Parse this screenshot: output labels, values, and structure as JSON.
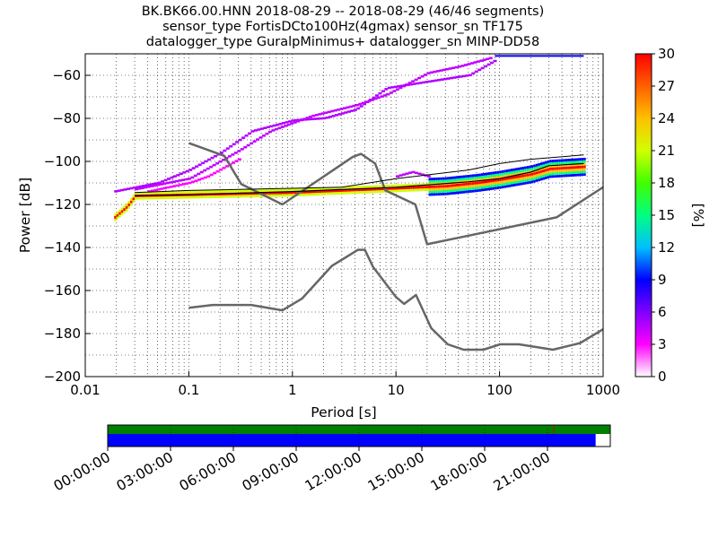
{
  "title": {
    "line1": "BK.BK66.00.HNN   2018-08-29 -- 2018-08-29  (46/46 segments)",
    "line2": "sensor_type FortisDCto100Hz(4gmax) sensor_sn TF175",
    "line3": "datalogger_type GuralpMinimus+ datalogger_sn MINP-DD58"
  },
  "chart_data": [
    {
      "type": "heatmap",
      "xlabel": "Period [s]",
      "ylabel": "Power [dB]",
      "x_scale": "log",
      "xlim": [
        0.01,
        1000
      ],
      "ylim": [
        -200,
        -50
      ],
      "x_ticks": [
        {
          "value": 0.01,
          "label": "0.01"
        },
        {
          "value": 0.1,
          "label": "0.1"
        },
        {
          "value": 1,
          "label": "1"
        },
        {
          "value": 10,
          "label": "10"
        },
        {
          "value": 100,
          "label": "100"
        },
        {
          "value": 1000,
          "label": "1000"
        }
      ],
      "y_ticks": [
        {
          "value": -60,
          "label": "−60"
        },
        {
          "value": -80,
          "label": "−80"
        },
        {
          "value": -100,
          "label": "−100"
        },
        {
          "value": -120,
          "label": "−120"
        },
        {
          "value": -140,
          "label": "−140"
        },
        {
          "value": -160,
          "label": "−160"
        },
        {
          "value": -180,
          "label": "−180"
        },
        {
          "value": -200,
          "label": "−200"
        }
      ],
      "grid": true,
      "colorbar": {
        "label": "[%]",
        "range": [
          0,
          30
        ],
        "ticks": [
          {
            "value": 0,
            "label": "0"
          },
          {
            "value": 3,
            "label": "3"
          },
          {
            "value": 6,
            "label": "6"
          },
          {
            "value": 9,
            "label": "9"
          },
          {
            "value": 12,
            "label": "12"
          },
          {
            "value": 15,
            "label": "15"
          },
          {
            "value": 18,
            "label": "18"
          },
          {
            "value": 21,
            "label": "21"
          },
          {
            "value": 24,
            "label": "24"
          },
          {
            "value": 27,
            "label": "27"
          },
          {
            "value": 30,
            "label": "30"
          }
        ],
        "colors": [
          "#ffffff",
          "#ff00ff",
          "#8000ff",
          "#0000ff",
          "#00c0ff",
          "#00ff80",
          "#40ff00",
          "#d0ff00",
          "#ffc000",
          "#ff6000",
          "#ff0000"
        ]
      },
      "dense_band": [
        {
          "period": 0.019,
          "db": -126
        },
        {
          "period": 0.025,
          "db": -121
        },
        {
          "period": 0.03,
          "db": -116
        },
        {
          "period": 0.1,
          "db": -115.5
        },
        {
          "period": 1,
          "db": -114.5
        },
        {
          "period": 3,
          "db": -113.5
        },
        {
          "period": 10,
          "db": -112.5
        },
        {
          "period": 30,
          "db": -111.5
        },
        {
          "period": 60,
          "db": -110
        },
        {
          "period": 100,
          "db": -108.5
        },
        {
          "period": 200,
          "db": -106
        },
        {
          "period": 300,
          "db": -103.5
        },
        {
          "period": 650,
          "db": -102.5
        }
      ],
      "sparse_traces": [
        {
          "color": "#b000ff",
          "points": [
            {
              "period": 0.019,
              "db": -114
            },
            {
              "period": 0.05,
              "db": -110
            },
            {
              "period": 0.1,
              "db": -104
            },
            {
              "period": 0.2,
              "db": -96
            },
            {
              "period": 0.4,
              "db": -86
            },
            {
              "period": 1,
              "db": -81
            },
            {
              "period": 2,
              "db": -80
            },
            {
              "period": 4,
              "db": -76
            },
            {
              "period": 8,
              "db": -66
            },
            {
              "period": 20,
              "db": -63
            },
            {
              "period": 50,
              "db": -60
            },
            {
              "period": 90,
              "db": -53
            }
          ]
        },
        {
          "color": "#c000ff",
          "points": [
            {
              "period": 0.03,
              "db": -113
            },
            {
              "period": 0.1,
              "db": -108
            },
            {
              "period": 0.3,
              "db": -95
            },
            {
              "period": 0.6,
              "db": -86
            },
            {
              "period": 1.5,
              "db": -79
            },
            {
              "period": 4,
              "db": -74
            },
            {
              "period": 8,
              "db": -69
            },
            {
              "period": 20,
              "db": -59
            },
            {
              "period": 40,
              "db": -56
            },
            {
              "period": 80,
              "db": -52
            }
          ]
        },
        {
          "color": "#ff00ff",
          "points": [
            {
              "period": 0.04,
              "db": -114
            },
            {
              "period": 0.1,
              "db": -110
            },
            {
              "period": 0.15,
              "db": -107
            },
            {
              "period": 0.3,
              "db": -99
            }
          ]
        },
        {
          "color": "#c000ff",
          "points": [
            {
              "period": 10,
              "db": -107
            },
            {
              "period": 14,
              "db": -105
            },
            {
              "period": 20,
              "db": -107
            }
          ]
        }
      ],
      "top_blue_line": {
        "period": [
          90,
          650
        ],
        "db": -51
      },
      "mode_line": [
        {
          "period": 0.03,
          "db": -116
        },
        {
          "period": 0.1,
          "db": -115.5
        },
        {
          "period": 1,
          "db": -114
        },
        {
          "period": 10,
          "db": -112
        },
        {
          "period": 50,
          "db": -109.5
        },
        {
          "period": 100,
          "db": -108
        },
        {
          "period": 200,
          "db": -105
        },
        {
          "period": 300,
          "db": -102
        },
        {
          "period": 650,
          "db": -101
        }
      ],
      "mean_line": [
        {
          "period": 0.03,
          "db": -114.5
        },
        {
          "period": 0.1,
          "db": -113.5
        },
        {
          "period": 1,
          "db": -112.5
        },
        {
          "period": 3,
          "db": -112
        },
        {
          "period": 10,
          "db": -108
        },
        {
          "period": 50,
          "db": -104
        },
        {
          "period": 100,
          "db": -101
        },
        {
          "period": 200,
          "db": -99
        },
        {
          "period": 650,
          "db": -97
        }
      ],
      "nhnm": [
        {
          "period": 0.1,
          "db": -91.5
        },
        {
          "period": 0.22,
          "db": -97.4
        },
        {
          "period": 0.32,
          "db": -110.5
        },
        {
          "period": 0.8,
          "db": -120
        },
        {
          "period": 3.8,
          "db": -98
        },
        {
          "period": 4.6,
          "db": -96.5
        },
        {
          "period": 6.3,
          "db": -101
        },
        {
          "period": 7.9,
          "db": -113.5
        },
        {
          "period": 15.4,
          "db": -120
        },
        {
          "period": 20,
          "db": -138.5
        },
        {
          "period": 354.8,
          "db": -126
        },
        {
          "period": 1000,
          "db": -112
        }
      ],
      "nlnm": [
        {
          "period": 0.1,
          "db": -168
        },
        {
          "period": 0.17,
          "db": -166.7
        },
        {
          "period": 0.4,
          "db": -166.7
        },
        {
          "period": 0.8,
          "db": -169.2
        },
        {
          "period": 1.24,
          "db": -163.7
        },
        {
          "period": 2.4,
          "db": -148.6
        },
        {
          "period": 4.3,
          "db": -141.1
        },
        {
          "period": 5,
          "db": -141.1
        },
        {
          "period": 6,
          "db": -149
        },
        {
          "period": 10,
          "db": -163
        },
        {
          "period": 12,
          "db": -166.2
        },
        {
          "period": 15.6,
          "db": -162.1
        },
        {
          "period": 21.9,
          "db": -177.5
        },
        {
          "period": 31.6,
          "db": -185
        },
        {
          "period": 45,
          "db": -187.5
        },
        {
          "period": 70,
          "db": -187.5
        },
        {
          "period": 101,
          "db": -185
        },
        {
          "period": 154,
          "db": -185
        },
        {
          "period": 328,
          "db": -187.5
        },
        {
          "period": 600,
          "db": -184.4
        },
        {
          "period": 1000,
          "db": -178
        }
      ]
    },
    {
      "type": "bar",
      "title": "",
      "time_ticks": [
        {
          "hours": 0,
          "label": "00:00:00"
        },
        {
          "hours": 3,
          "label": "03:00:00"
        },
        {
          "hours": 6,
          "label": "06:00:00"
        },
        {
          "hours": 9,
          "label": "09:00:00"
        },
        {
          "hours": 12,
          "label": "12:00:00"
        },
        {
          "hours": 15,
          "label": "15:00:00"
        },
        {
          "hours": 18,
          "label": "18:00:00"
        },
        {
          "hours": 21,
          "label": "21:00:00"
        }
      ],
      "range_hours": [
        0,
        24
      ],
      "data_coverage": {
        "from_hours": 0,
        "to_hours": 24,
        "color": "#008000"
      },
      "psd_coverage": {
        "from_hours": 0,
        "to_hours": 23.3,
        "color": "#0000ff"
      },
      "gap_marker_hours": 21.3
    }
  ]
}
